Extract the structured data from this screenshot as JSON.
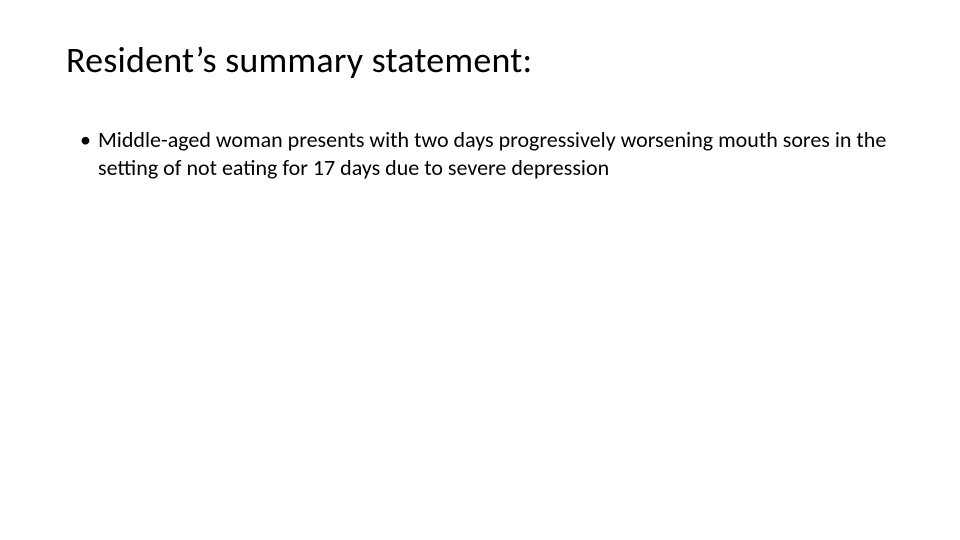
{
  "title": "Resident’s summary statement:",
  "bullets": [
    "Middle-aged woman presents with two days progressively worsening mouth sores in the setting of not eating for 17 days due to severe depression"
  ],
  "colors": {
    "background": "#ffffff",
    "text": "#000000"
  },
  "typography": {
    "title_fontsize": 36,
    "body_fontsize": 22,
    "font_family": "Calibri"
  }
}
